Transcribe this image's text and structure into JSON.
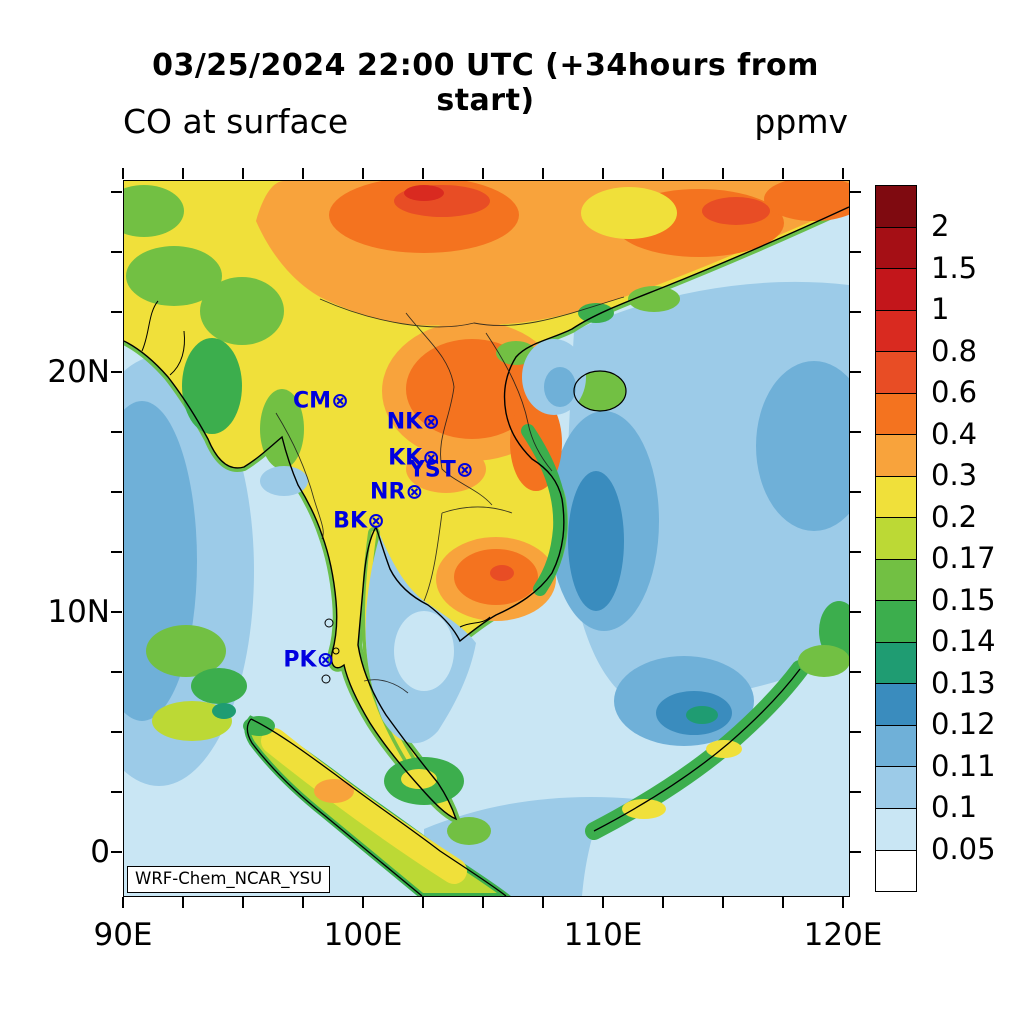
{
  "titles": {
    "main": "03/25/2024 22:00 UTC (+34hours from start)",
    "left": "CO at surface",
    "units": "ppmv"
  },
  "model_label": "WRF-Chem_NCAR_YSU",
  "marker_glyph": "⊗",
  "station_color": "#0000e0",
  "axes": {
    "x_major": [
      {
        "label": "90E",
        "lon": 90
      },
      {
        "label": "100E",
        "lon": 100
      },
      {
        "label": "110E",
        "lon": 110
      },
      {
        "label": "120E",
        "lon": 120
      }
    ],
    "y_major": [
      {
        "label": "20N",
        "lat": 20
      },
      {
        "label": "10N",
        "lat": 10
      },
      {
        "label": "0",
        "lat": 0
      }
    ]
  },
  "stations": [
    {
      "label": "CM",
      "lon": 99.0,
      "lat": 18.8
    },
    {
      "label": "NK",
      "lon": 102.8,
      "lat": 17.9
    },
    {
      "label": "KK",
      "lon": 102.8,
      "lat": 16.4
    },
    {
      "label": "YST",
      "lon": 104.2,
      "lat": 15.9
    },
    {
      "label": "NR",
      "lon": 102.1,
      "lat": 15.0
    },
    {
      "label": "BK",
      "lon": 100.5,
      "lat": 13.8
    },
    {
      "label": "PK",
      "lon": 98.4,
      "lat": 8.0
    }
  ],
  "colorbar": {
    "labels": [
      "2",
      "1.5",
      "1",
      "0.8",
      "0.6",
      "0.4",
      "0.3",
      "0.2",
      "0.17",
      "0.15",
      "0.14",
      "0.13",
      "0.12",
      "0.11",
      "0.1",
      "0.05"
    ],
    "colors": [
      "#7f0a10",
      "#a50f15",
      "#c3161b",
      "#d92a20",
      "#e84d25",
      "#f4731f",
      "#f8a33c",
      "#f0e03a",
      "#bcd935",
      "#72c043",
      "#3cae4d",
      "#1f9c72",
      "#3a8cbe",
      "#6fb0d8",
      "#9ccbe8",
      "#c9e6f4",
      "#ffffff"
    ]
  },
  "chart_data": {
    "type": "heatmap",
    "title": "03/25/2024 22:00 UTC (+34hours from start)",
    "subtitle": "CO at surface",
    "variable": "CO",
    "units": "ppmv",
    "model": "WRF-Chem_NCAR_YSU",
    "x": {
      "label": "longitude",
      "range_deg": [
        90,
        120.2
      ],
      "tick_labels": [
        "90E",
        "100E",
        "110E",
        "120E"
      ]
    },
    "y": {
      "label": "latitude",
      "range_deg": [
        -1.8,
        28
      ],
      "tick_labels": [
        "0",
        "10N",
        "20N"
      ]
    },
    "contour_levels_ppmv": [
      0.05,
      0.1,
      0.11,
      0.12,
      0.13,
      0.14,
      0.15,
      0.17,
      0.2,
      0.3,
      0.4,
      0.6,
      0.8,
      1,
      1.5,
      2
    ],
    "palette_low_to_high": [
      "#ffffff",
      "#c9e6f4",
      "#9ccbe8",
      "#6fb0d8",
      "#3a8cbe",
      "#1f9c72",
      "#3cae4d",
      "#72c043",
      "#bcd935",
      "#f0e03a",
      "#f8a33c",
      "#f4731f",
      "#e84d25",
      "#d92a20",
      "#c3161b",
      "#a50f15",
      "#7f0a10"
    ],
    "legend_position": "right",
    "stations": [
      {
        "label": "CM",
        "lon": 99.0,
        "lat": 18.8
      },
      {
        "label": "NK",
        "lon": 102.8,
        "lat": 17.9
      },
      {
        "label": "KK",
        "lon": 102.8,
        "lat": 16.4
      },
      {
        "label": "YST",
        "lon": 104.2,
        "lat": 15.9
      },
      {
        "label": "NR",
        "lon": 102.1,
        "lat": 15.0
      },
      {
        "label": "BK",
        "lon": 100.5,
        "lat": 13.8
      },
      {
        "label": "PK",
        "lon": 98.4,
        "lat": 8.0
      }
    ],
    "field_summary": [
      "0.4-0.8 ppmv band across southern China and far northern Vietnam (top of domain)",
      "0.3-0.6 ppmv over northern Laos / north-central Vietnam with local maxima",
      "0.2-0.3 ppmv over Myanmar, Thailand and Cambodia lowlands; ~0.3-0.6 patch around Tonle Sap / Mekong delta",
      "0.14-0.2 ppmv green transition zones along coasts, Andaman Sea plume, Sumatra and northwest Borneo coast",
      "0.05-0.13 ppmv over the South China Sea, Gulf of Thailand and Bay of Bengal (light blues)",
      "local deeper-blue minima 0.12-0.14 ppmv southeast of Vietnam and in the southern sea areas"
    ]
  }
}
